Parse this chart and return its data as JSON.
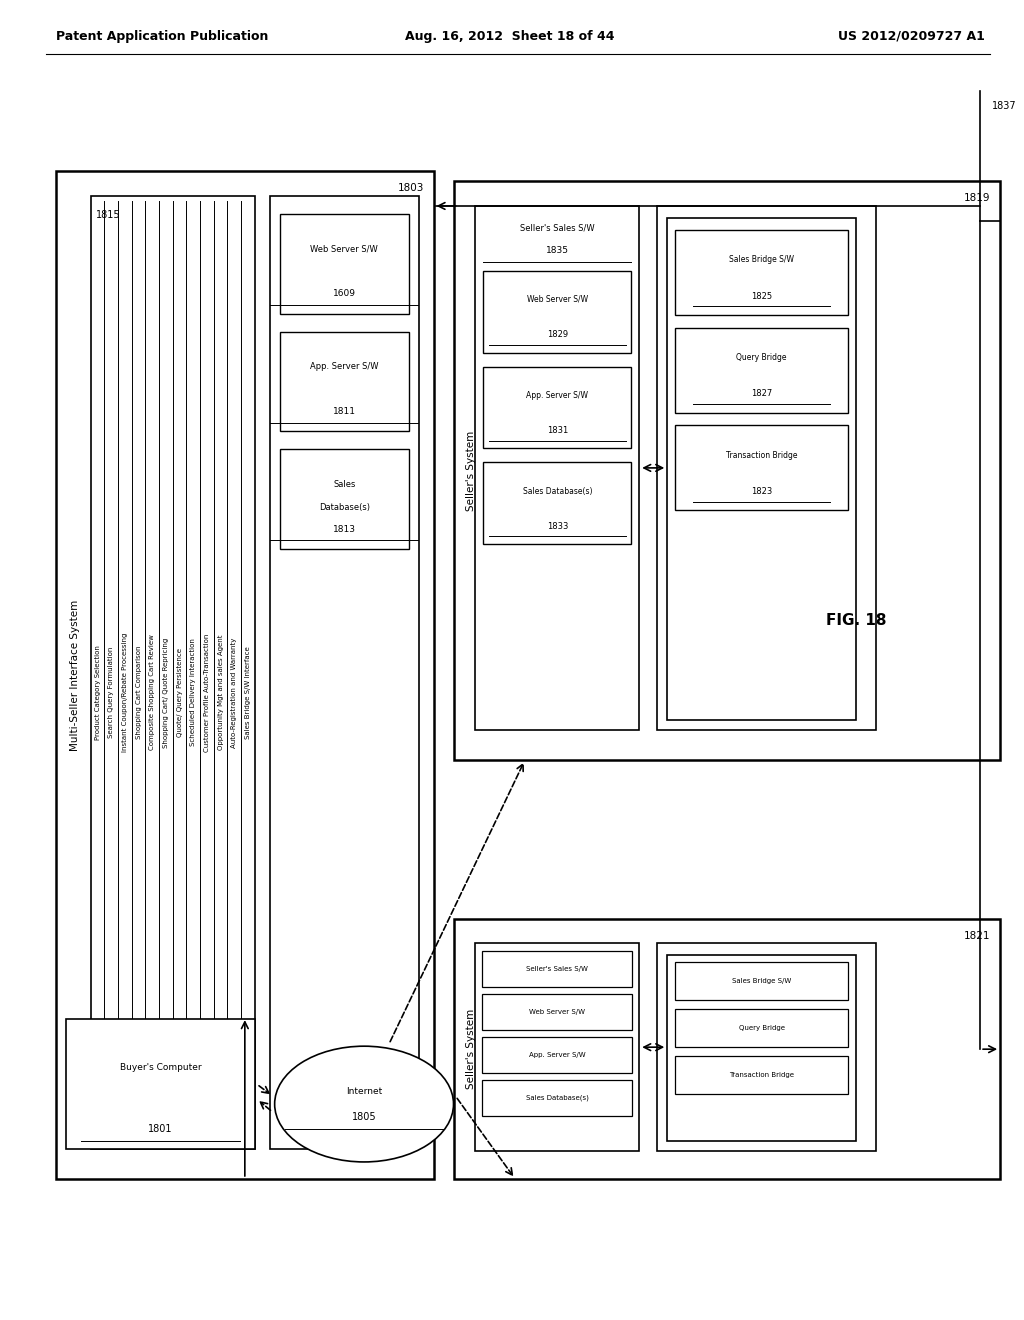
{
  "header_left": "Patent Application Publication",
  "header_mid": "Aug. 16, 2012  Sheet 18 of 44",
  "header_right": "US 2012/0209727 A1",
  "fig_label": "FIG. 18",
  "bg_color": "#ffffff",
  "lc": "#000000",
  "ms_list_items": [
    "Product Category Selection",
    "Search Query Formulation",
    "Instant Coupon/Rebate Processing",
    "Shopping Cart Comparison",
    "Composite Shopping Cart Review",
    "Shopping Cart/ Quote Repricing",
    "Quote/ Query Persistence",
    "Scheduled Delivery Interaction",
    "Customer Profile Auto-Transaction",
    "Opportunity Mgt and sales Agent",
    "Auto-Registration and Warranty",
    "Sales Bridge S/W Interface"
  ],
  "ms_server_items": [
    {
      "label": "Web Server S/W",
      "id": "1609"
    },
    {
      "label": "App. Server S/W",
      "id": "1811"
    },
    {
      "label": "Sales\nDatabase(s)",
      "id": "1813"
    }
  ],
  "s1_bridge_items": [
    {
      "label": "Sales Bridge S/W",
      "id": "1825"
    },
    {
      "label": "Query Bridge",
      "id": "1827"
    },
    {
      "label": "Transaction Bridge",
      "id": "1823"
    }
  ],
  "s1_sales_items": [
    {
      "label": "Web Server S/W",
      "id": "1829"
    },
    {
      "label": "App. Server S/W",
      "id": "1831"
    },
    {
      "label": "Sales Database(s)",
      "id": "1833"
    }
  ],
  "s2_bridge_items": [
    {
      "label": "Sales Bridge S/W",
      "id": ""
    },
    {
      "label": "Query Bridge",
      "id": ""
    },
    {
      "label": "Transaction Bridge",
      "id": ""
    }
  ],
  "s2_sales_items": [
    {
      "label": "Seller's Sales S/W",
      "id": ""
    },
    {
      "label": "Web Server S/W",
      "id": ""
    },
    {
      "label": "App. Server S/W",
      "id": ""
    },
    {
      "label": "Sales Database(s)",
      "id": ""
    }
  ]
}
